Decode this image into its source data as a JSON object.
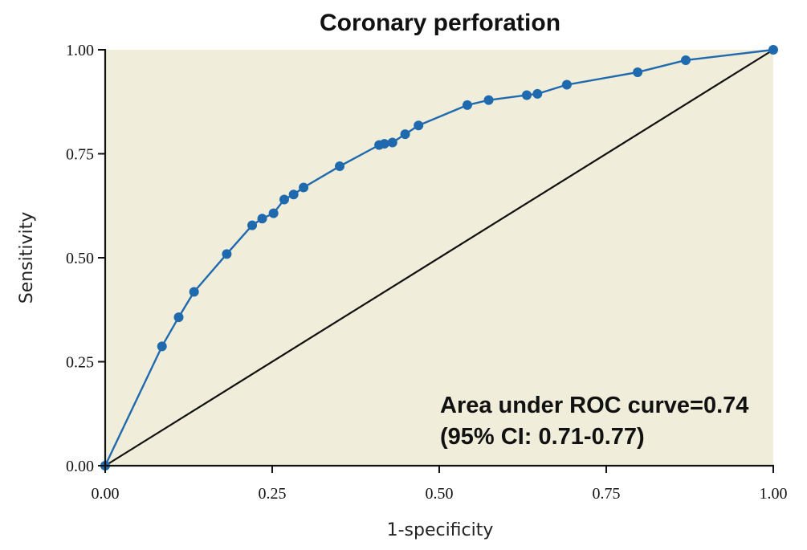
{
  "chart_data": {
    "type": "line",
    "title": "Coronary perforation",
    "xlabel": "1-specificity",
    "ylabel": "Sensitivity",
    "xlim": [
      0,
      1
    ],
    "ylim": [
      0,
      1
    ],
    "x_ticks": [
      "0.00",
      "0.25",
      "0.50",
      "0.75",
      "1.00"
    ],
    "y_ticks": [
      "0.00",
      "0.25",
      "0.50",
      "0.75",
      "1.00"
    ],
    "grid": false,
    "legend": "none",
    "series": [
      {
        "name": "ROC curve",
        "x": [
          0.0,
          0.085,
          0.11,
          0.133,
          0.182,
          0.22,
          0.235,
          0.252,
          0.268,
          0.282,
          0.297,
          0.351,
          0.41,
          0.418,
          0.43,
          0.449,
          0.469,
          0.542,
          0.574,
          0.631,
          0.647,
          0.691,
          0.797,
          0.869,
          1.0
        ],
        "y": [
          0.0,
          0.287,
          0.357,
          0.418,
          0.509,
          0.578,
          0.594,
          0.607,
          0.64,
          0.652,
          0.669,
          0.72,
          0.771,
          0.774,
          0.777,
          0.797,
          0.818,
          0.867,
          0.879,
          0.891,
          0.894,
          0.916,
          0.946,
          0.975,
          1.0
        ]
      },
      {
        "name": "Reference line",
        "x": [
          0,
          1
        ],
        "y": [
          0,
          1
        ]
      }
    ],
    "annotation": {
      "line1": "Area under ROC curve=0.74",
      "line2": "(95% CI: 0.71-0.77)"
    },
    "colors": {
      "plot_background": "#f0eedb",
      "curve": "#1f6aaf",
      "reference": "#111111",
      "axis": "#111111"
    }
  }
}
